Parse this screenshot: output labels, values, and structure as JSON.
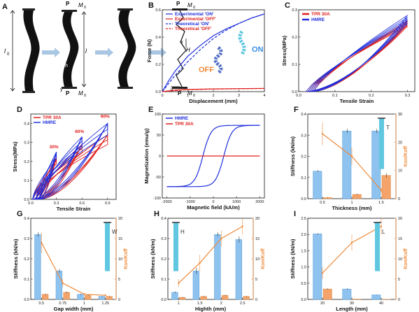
{
  "colors": {
    "blue": "#1f2fdc",
    "red": "#e0201c",
    "bar": "#8ec3f0",
    "barEdge": "#5b9bd5",
    "orange": "#ed8b3c",
    "cyan": "#5fc8e0"
  },
  "panels": {
    "A": {
      "label": "A",
      "l0": "l",
      "l0sub": "0",
      "l": "l",
      "h": "h",
      "x": "x",
      "y": "y",
      "P": "P",
      "M0": "M",
      "M0sub": "0",
      "H": "H"
    },
    "B": {
      "label": "B",
      "xlabel": "Displacement (mm)",
      "ylabel": "Force (N)",
      "off_text": "OFF",
      "on_text": "ON"
    },
    "C": {
      "label": "C",
      "xlabel": "Tensile Strain",
      "ylabel": "Stress(MPa)"
    },
    "D": {
      "label": "D",
      "xlabel": "Tensile Strain",
      "ylabel": "Stress(MPa)",
      "annotations": [
        "30%",
        "60%",
        "90%"
      ]
    },
    "E": {
      "label": "E",
      "xlabel": "Magnetic field (kA/m)",
      "ylabel": "Magnetization (emu/g)"
    },
    "F": {
      "label": "F",
      "xlabel": "Thickness (mm)",
      "ylabel": "Stiffness (kN/m)",
      "y2label": "Kon/Koff",
      "dim": "T"
    },
    "G": {
      "label": "G",
      "xlabel": "Gap width (mm)",
      "ylabel": "Stiffness (kN/m)",
      "y2label": "Kon/Koff",
      "dim": "W"
    },
    "H": {
      "label": "H",
      "xlabel": "Highth (mm)",
      "ylabel": "Stiffness (kN/m)",
      "y2label": "Kon/Koff",
      "dim": "H"
    },
    "I": {
      "label": "I",
      "xlabel": "Length (mm)",
      "ylabel": "Stiffness (kN/m)",
      "y2label": "Kon/Koff",
      "dim": "L"
    }
  },
  "chart_data": [
    {
      "panel": "B",
      "type": "line",
      "xlim": [
        0,
        4
      ],
      "ylim": [
        0,
        0.6
      ],
      "xticks": [
        "0",
        "1",
        "2",
        "3",
        "4"
      ],
      "yticks": [
        "0.0",
        "0.2",
        "0.4",
        "0.6"
      ],
      "series": [
        {
          "name": "Experimental 'ON'",
          "color": "#1f2fdc",
          "dash": "solid",
          "x": [
            0,
            0.25,
            0.5,
            1,
            1.5,
            2,
            2.5,
            3,
            3.5,
            4
          ],
          "y": [
            0,
            0.08,
            0.15,
            0.26,
            0.34,
            0.41,
            0.46,
            0.5,
            0.54,
            0.57
          ]
        },
        {
          "name": "Experimental 'OFF'",
          "color": "#e0201c",
          "dash": "solid",
          "x": [
            0,
            0.5,
            1,
            2,
            3,
            4
          ],
          "y": [
            0,
            0.012,
            0.016,
            0.02,
            0.022,
            0.024
          ]
        },
        {
          "name": "Theoretical 'ON'",
          "color": "#1f2fdc",
          "dash": "dash",
          "x": [
            0,
            0.5,
            1,
            1.5,
            2,
            2.5,
            3,
            3.5,
            4
          ],
          "y": [
            0,
            0.12,
            0.22,
            0.31,
            0.39,
            0.45,
            0.5,
            0.54,
            0.57
          ]
        },
        {
          "name": "Theoretical 'OFF'",
          "color": "#e0201c",
          "dash": "dash",
          "x": [
            0,
            1,
            2,
            3,
            4
          ],
          "y": [
            0,
            0.015,
            0.019,
            0.021,
            0.023
          ]
        }
      ]
    },
    {
      "panel": "C",
      "type": "line",
      "xlim": [
        0,
        0.32
      ],
      "ylim": [
        0,
        0.3
      ],
      "xticks": [
        "0.0",
        "0.1",
        "0.2",
        "0.3"
      ],
      "yticks": [
        "0.0",
        "0.1",
        "0.2",
        "0.3"
      ],
      "series": [
        {
          "name": "TPR 30A",
          "color": "#e0201c",
          "peaks": [
            0.24,
            0.245,
            0.25,
            0.255,
            0.26
          ]
        },
        {
          "name": "HMRE",
          "color": "#1f2fdc",
          "peaks": [
            0.25,
            0.258,
            0.265,
            0.272,
            0.28
          ]
        }
      ]
    },
    {
      "panel": "D",
      "type": "line",
      "xlim": [
        0,
        1.0
      ],
      "ylim": [
        0,
        0.45
      ],
      "xticks": [
        "0.0",
        "0.3",
        "0.6",
        "0.9"
      ],
      "yticks": [
        "0.0",
        "0.1",
        "0.2",
        "0.3",
        "0.4"
      ],
      "series": [
        {
          "name": "TPR 30A",
          "color": "#e0201c",
          "loops": [
            {
              "xmax": 0.3,
              "ymax": 0.22
            },
            {
              "xmax": 0.6,
              "ymax": 0.29
            },
            {
              "xmax": 0.9,
              "ymax": 0.34
            }
          ]
        },
        {
          "name": "HMRE",
          "color": "#1f2fdc",
          "loops": [
            {
              "xmax": 0.3,
              "ymax": 0.25
            },
            {
              "xmax": 0.6,
              "ymax": 0.33
            },
            {
              "xmax": 0.9,
              "ymax": 0.4
            }
          ]
        }
      ]
    },
    {
      "panel": "E",
      "type": "line",
      "xlim": [
        -2200,
        2200
      ],
      "ylim": [
        -100,
        100
      ],
      "xticks": [
        "-2000",
        "-1000",
        "0",
        "1000",
        "2000"
      ],
      "yticks": [
        "-100",
        "-50",
        "0",
        "50",
        "100"
      ],
      "series": [
        {
          "name": "HMRE",
          "color": "#1f2fdc",
          "saturation": 73,
          "coercivity": 450
        },
        {
          "name": "TPR 30A",
          "color": "#e0201c",
          "x": [
            -2000,
            2000
          ],
          "y": [
            0,
            0
          ]
        }
      ]
    },
    {
      "panel": "F",
      "type": "bar",
      "categories": [
        "0.5",
        "1",
        "1.5"
      ],
      "ylim": [
        0,
        0.4
      ],
      "yticks": [
        "0.0",
        "0.1",
        "0.2",
        "0.3",
        "0.4"
      ],
      "y2lim": [
        0,
        30
      ],
      "y2ticks": [
        "0",
        "10",
        "20",
        "30"
      ],
      "series": [
        {
          "name": "Stiffness ON",
          "values": [
            0.13,
            0.32,
            0.32
          ],
          "err": [
            0.005,
            0.01,
            0.01
          ]
        },
        {
          "name": "Stiffness OFF",
          "values": [
            0.005,
            0.02,
            0.11
          ],
          "err": [
            0.002,
            0.003,
            0.01
          ]
        },
        {
          "name": "Kon/Koff",
          "values": [
            23,
            15,
            3
          ],
          "err": [
            4,
            3,
            1
          ]
        }
      ]
    },
    {
      "panel": "G",
      "type": "bar",
      "categories": [
        "0.5",
        "0.75",
        "1",
        "1.25"
      ],
      "ylim": [
        0,
        0.4
      ],
      "yticks": [
        "0.0",
        "0.1",
        "0.2",
        "0.3",
        "0.4"
      ],
      "y2lim": [
        0,
        20
      ],
      "y2ticks": [
        "0",
        "5",
        "10",
        "15",
        "20"
      ],
      "series": [
        {
          "name": "Stiffness ON",
          "values": [
            0.32,
            0.14,
            0.025,
            0.015
          ],
          "err": [
            0.01,
            0.01,
            0.003,
            0.002
          ]
        },
        {
          "name": "Stiffness OFF",
          "values": [
            0.025,
            0.035,
            0.02,
            0.015
          ],
          "err": [
            0.003,
            0.004,
            0.002,
            0.002
          ]
        },
        {
          "name": "Kon/Koff",
          "values": [
            14,
            4,
            1.3,
            1
          ],
          "err": [
            2.5,
            1,
            0.3,
            0.3
          ]
        }
      ]
    },
    {
      "panel": "H",
      "type": "bar",
      "categories": [
        "1",
        "1.5",
        "2",
        "2.5"
      ],
      "ylim": [
        0,
        0.4
      ],
      "yticks": [
        "0.0",
        "0.1",
        "0.2",
        "0.3",
        "0.4"
      ],
      "y2lim": [
        0,
        20
      ],
      "y2ticks": [
        "0",
        "5",
        "10",
        "15",
        "20"
      ],
      "series": [
        {
          "name": "Stiffness ON",
          "values": [
            0.035,
            0.14,
            0.32,
            0.295
          ],
          "err": [
            0.004,
            0.015,
            0.01,
            0.015
          ]
        },
        {
          "name": "Stiffness OFF",
          "values": [
            0.01,
            0.015,
            0.02,
            0.015
          ],
          "err": [
            0.002,
            0.002,
            0.003,
            0.002
          ]
        },
        {
          "name": "Kon/Koff",
          "values": [
            4,
            9,
            15,
            18
          ],
          "err": [
            1,
            2,
            2,
            2
          ]
        }
      ]
    },
    {
      "panel": "I",
      "type": "bar",
      "categories": [
        "20",
        "30",
        "40"
      ],
      "ylim": [
        0,
        2.5
      ],
      "yticks": [
        "0.0",
        "0.5",
        "1.0",
        "1.5",
        "2.0",
        "2.5"
      ],
      "y2lim": [
        0,
        20
      ],
      "y2ticks": [
        "0",
        "5",
        "10",
        "15",
        "20"
      ],
      "series": [
        {
          "name": "Stiffness ON",
          "values": [
            2.02,
            0.32,
            0.14
          ],
          "err": [
            0.02,
            0.02,
            0.01
          ]
        },
        {
          "name": "Stiffness OFF",
          "values": [
            0.32,
            0.01,
            0.005
          ],
          "err": [
            0.02,
            0.002,
            0.002
          ]
        },
        {
          "name": "Kon/Koff",
          "values": [
            6.5,
            14,
            18
          ],
          "err": [
            1.5,
            2,
            2
          ]
        }
      ]
    }
  ]
}
